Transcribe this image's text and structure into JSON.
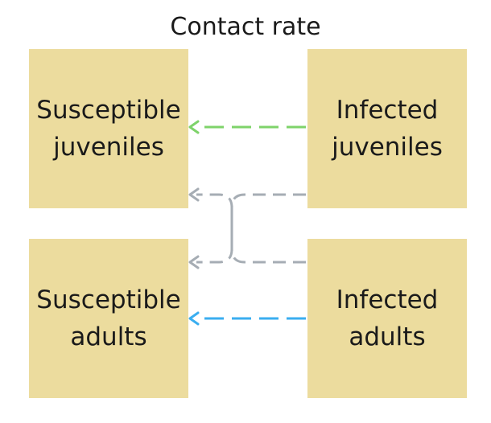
{
  "title": "Contact rate",
  "compartments": {
    "susceptible_juveniles": "Susceptible\njuveniles",
    "infected_juveniles": "Infected\njuveniles",
    "susceptible_adults": "Susceptible\nadults",
    "infected_adults": "Infected\nadults"
  },
  "colors": {
    "box_fill": "#ecdc9e",
    "arrow_juvenile": "#7ed36a",
    "arrow_adult": "#3aaef0",
    "arrow_cross": "#a6adb4"
  }
}
